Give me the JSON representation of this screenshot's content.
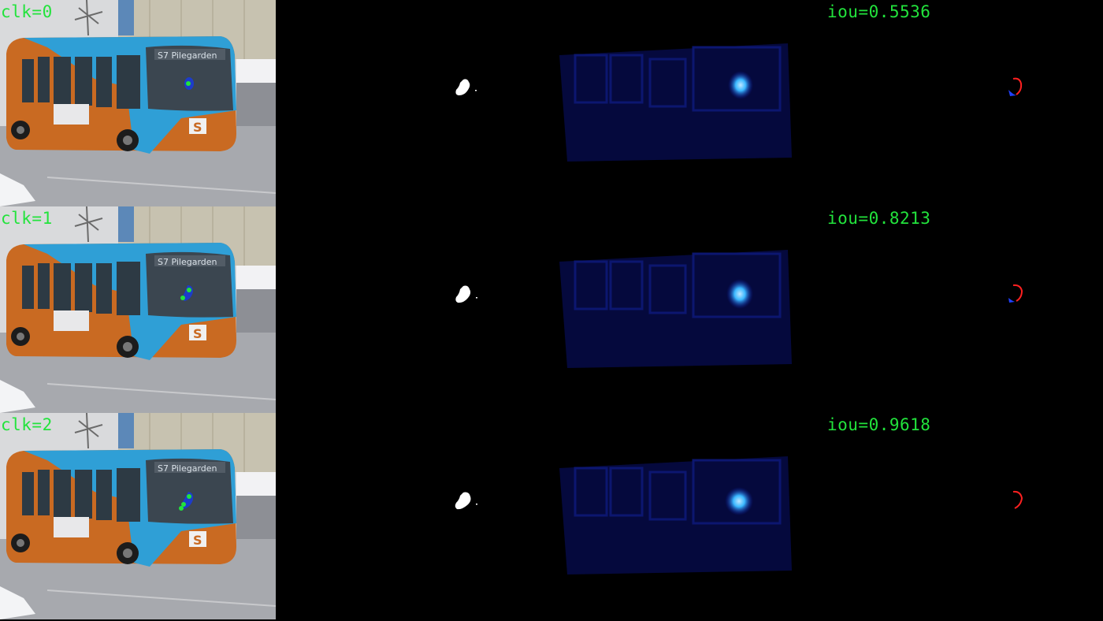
{
  "rows": [
    {
      "click_label": "clk=0",
      "iou_label": "iou=0.5536"
    },
    {
      "click_label": "clk=1",
      "iou_label": "iou=0.8213"
    },
    {
      "click_label": "clk=2",
      "iou_label": "iou=0.9618"
    }
  ],
  "bus_scene": {
    "destination_sign": "S7 Pilegarden",
    "logo_letter": "S"
  },
  "colors": {
    "label": "#22e33c",
    "bus_blue": "#2f9fd6",
    "bus_orange": "#c96a22",
    "heatmap_blue": "#0a18a8",
    "heatmap_peak": "#3ab8ff",
    "error_fp": "#ff2020",
    "error_fn": "#2040ff"
  }
}
